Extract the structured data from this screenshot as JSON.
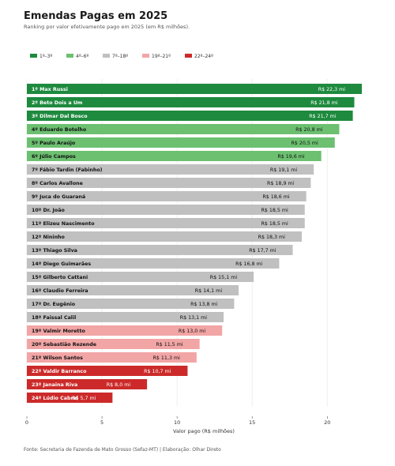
{
  "title": "Emendas Pagas em 2025",
  "subtitle": "Ranking por valor efetivamente pago em 2025 (em R$ milhões).",
  "footer": "Fonte: Secretaria de Fazenda de Mato Grosso (Sefaz-MT) | Elaboração: Olhar Direto",
  "chart_data": {
    "type": "bar",
    "orientation": "horizontal",
    "title": "Emendas Pagas em 2025",
    "subtitle": "Ranking por valor efetivamente pago em 2025 (em R$ milhões).",
    "xlabel": "Valor pago (R$ milhões)",
    "ylabel": "",
    "xlim": [
      0,
      22.3
    ],
    "xticks": [
      0,
      5,
      10,
      15,
      20
    ],
    "grid": "vertical",
    "legend_position": "top-left",
    "legend": [
      {
        "label": "1º–3º",
        "color": "#1e8a3e"
      },
      {
        "label": "4º–6º",
        "color": "#6cc070"
      },
      {
        "label": "7º–18º",
        "color": "#c0c0c0"
      },
      {
        "label": "19º–21º",
        "color": "#f2a5a5"
      },
      {
        "label": "22º–24º",
        "color": "#cc2a2a"
      }
    ],
    "categories": [
      "1º Max Russi",
      "2º Beto Dois a Um",
      "3º Dilmar Dal Bosco",
      "4º Eduardo Botelho",
      "5º Paulo Araújo",
      "6º Júlio Campos",
      "7º Fábio Tardin (Fabinho)",
      "8º Carlos Avallone",
      "9º Juca do Guaraná",
      "10º Dr. João",
      "11º Elizeu Nascimento",
      "12º Nininho",
      "13º Thiago Silva",
      "14º Diego Guimarães",
      "15º Gilberto Cattani",
      "16º Claudio Ferreira",
      "17º Dr. Eugênio",
      "18º Faissal Calil",
      "19º Valmir Moretto",
      "20º Sebastião Rezende",
      "21º Wilson Santos",
      "22º Valdir Barranco",
      "23º Janaina Riva",
      "24º Lúdio Cabral"
    ],
    "values": [
      22.3,
      21.8,
      21.7,
      20.8,
      20.5,
      19.6,
      19.1,
      18.9,
      18.6,
      18.5,
      18.5,
      18.3,
      17.7,
      16.8,
      15.1,
      14.1,
      13.8,
      13.1,
      13.0,
      11.5,
      11.3,
      10.7,
      8.0,
      5.7
    ],
    "value_labels": [
      "R$ 22,3 mi",
      "R$ 21,8 mi",
      "R$ 21,7 mi",
      "R$ 20,8 mi",
      "R$ 20,5 mi",
      "R$ 19,6 mi",
      "R$ 19,1 mi",
      "R$ 18,9 mi",
      "R$ 18,6 mi",
      "R$ 18,5 mi",
      "R$ 18,5 mi",
      "R$ 18,3 mi",
      "R$ 17,7 mi",
      "R$ 16,8 mi",
      "R$ 15,1 mi",
      "R$ 14,1 mi",
      "R$ 13,8 mi",
      "R$ 13,1 mi",
      "R$ 13,0 mi",
      "R$ 11,5 mi",
      "R$ 11,3 mi",
      "R$ 10,7 mi",
      "R$ 8,0 mi",
      "R$ 5,7 mi"
    ],
    "group": [
      0,
      0,
      0,
      1,
      1,
      1,
      2,
      2,
      2,
      2,
      2,
      2,
      2,
      2,
      2,
      2,
      2,
      2,
      3,
      3,
      3,
      4,
      4,
      4
    ]
  }
}
